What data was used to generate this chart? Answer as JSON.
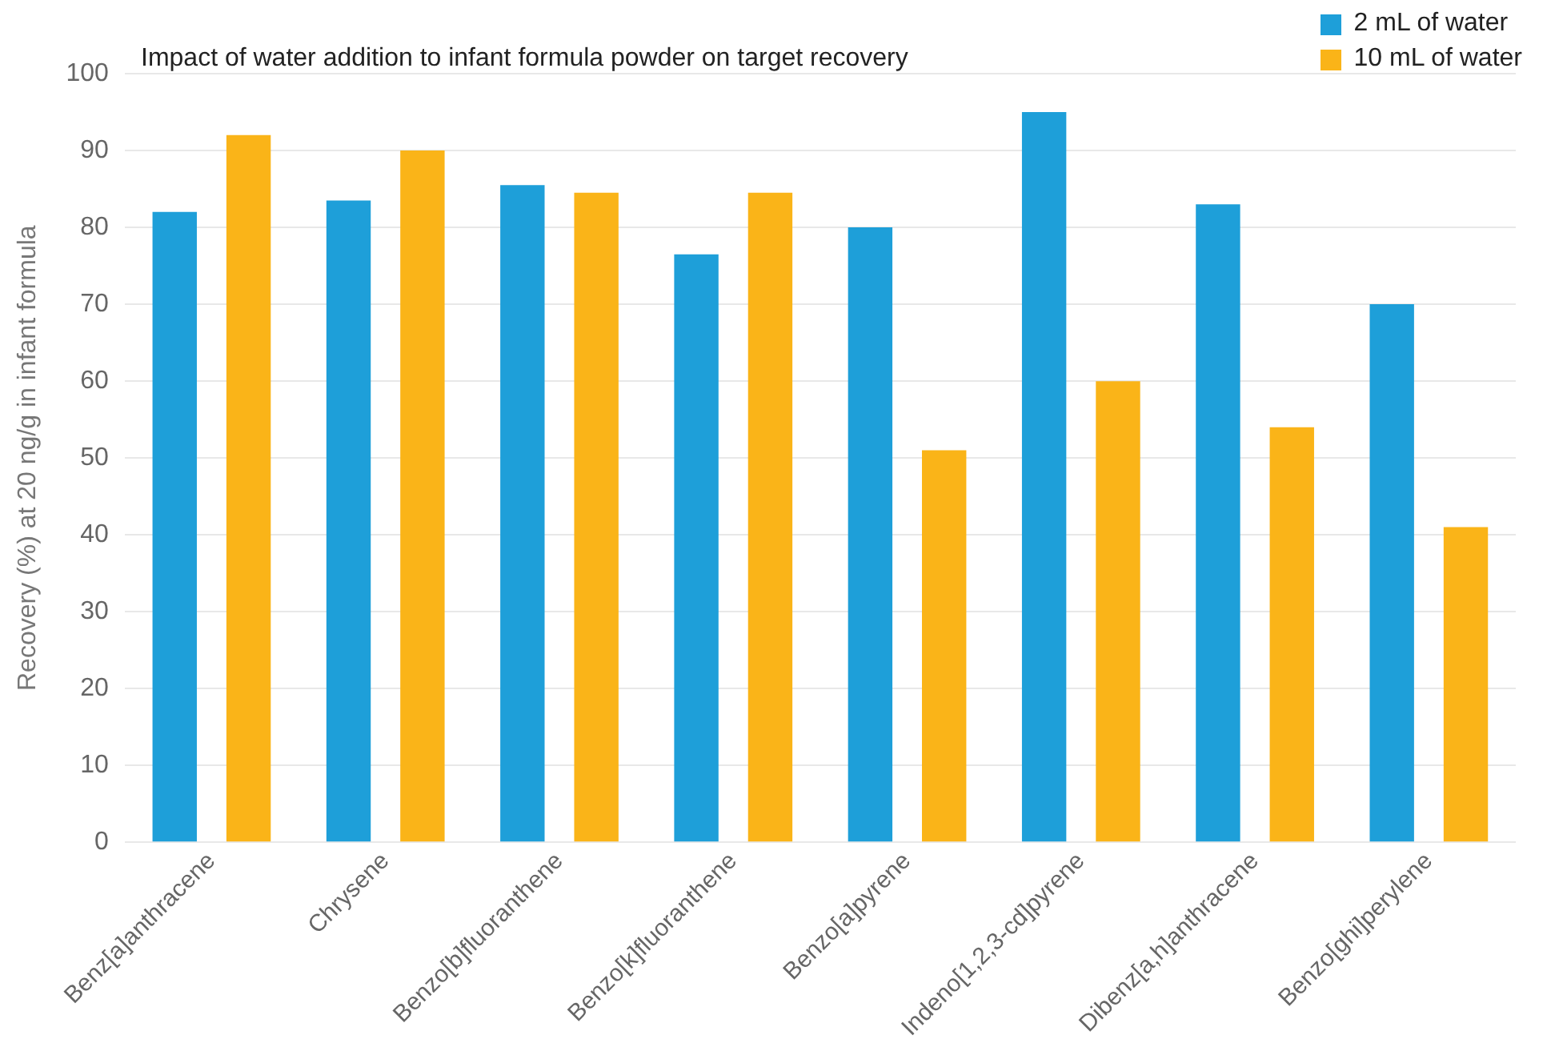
{
  "chart_data": {
    "type": "bar",
    "title": "Impact of water addition to infant formula powder on target recovery",
    "ylabel": "Recovery (%) at 20 ng/g in infant formula",
    "categories": [
      "Benz[a]anthracene",
      "Chrysene",
      "Benzo[b]fluoranthene",
      "Benzo[k]fluoranthene",
      "Benzo[a]pyrene",
      "Indeno[1,2,3-cd]pyrene",
      "Dibenz[a,h]anthracene",
      "Benzo[ghi]perylene"
    ],
    "series": [
      {
        "name": "2 mL of water",
        "color": "#1e9fd9",
        "values": [
          82,
          83.5,
          85.5,
          76.5,
          80,
          95,
          83,
          70
        ]
      },
      {
        "name": "10 mL of water",
        "color": "#fab418",
        "values": [
          92,
          90,
          84.5,
          84.5,
          51,
          60,
          54,
          41
        ]
      }
    ],
    "ylim": [
      0,
      100
    ],
    "yticks": [
      0,
      10,
      20,
      30,
      40,
      50,
      60,
      70,
      80,
      90,
      100
    ],
    "grid": "y",
    "legend": "top right"
  }
}
